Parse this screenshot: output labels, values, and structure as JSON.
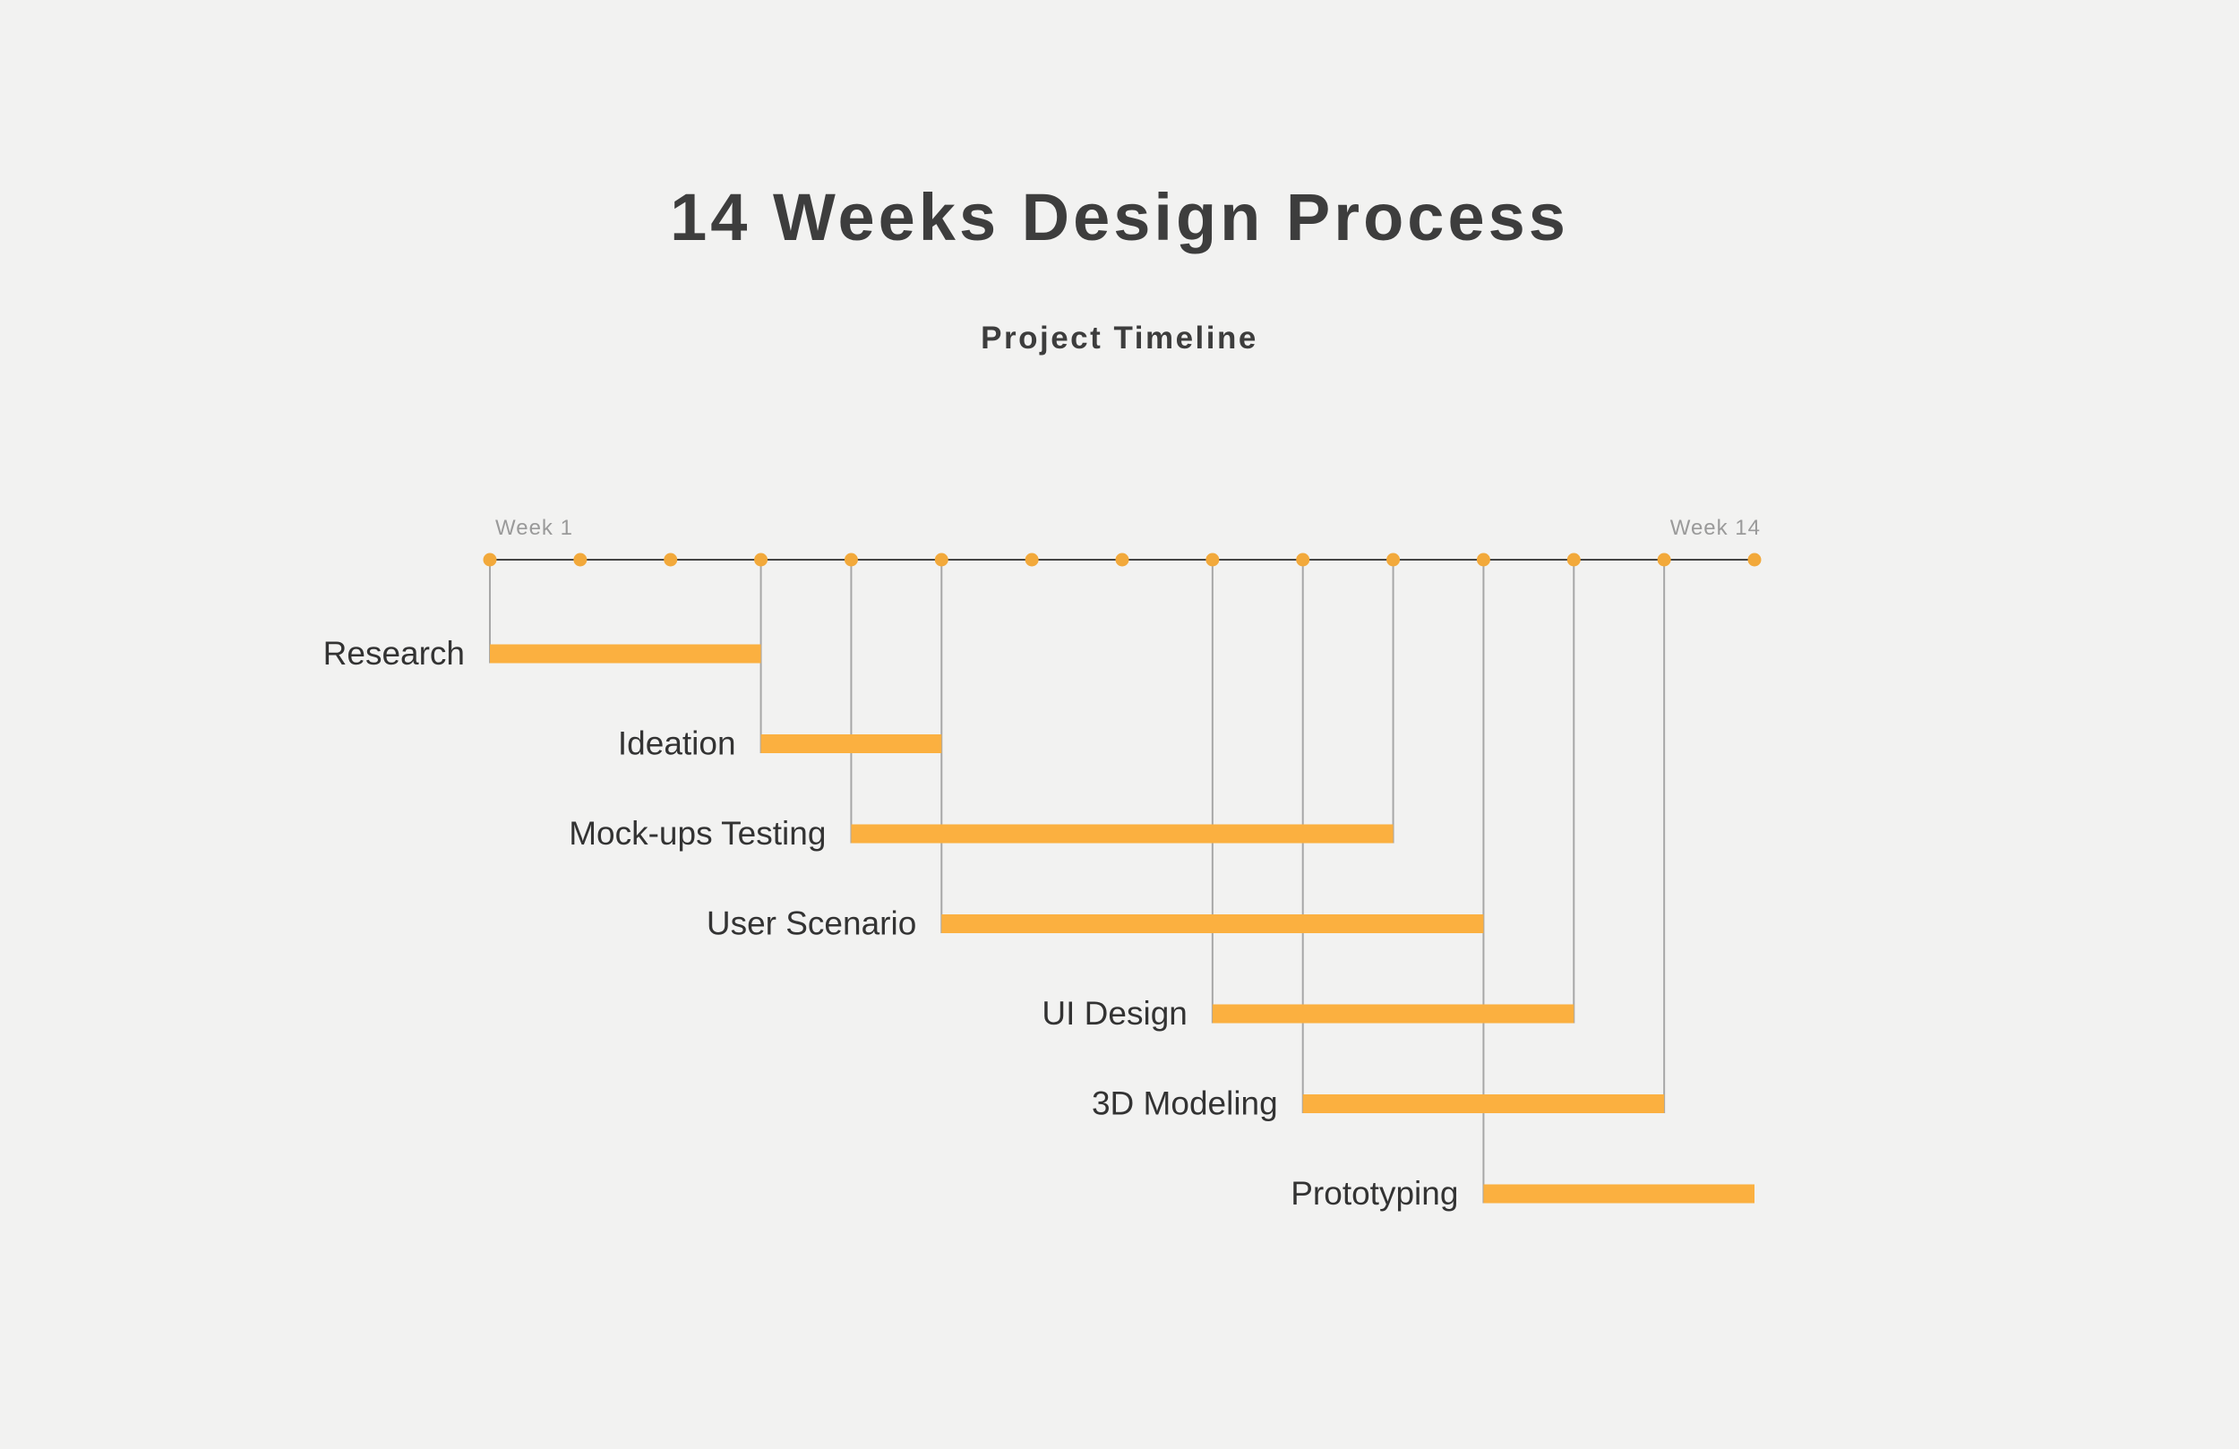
{
  "chart_data": {
    "type": "bar",
    "orientation": "horizontal",
    "title": "14 Weeks Design Process",
    "subtitle": "Project Timeline",
    "axis": {
      "start_label": "Week 1",
      "end_label": "Week 14",
      "range": [
        1,
        15
      ],
      "ticks": [
        1,
        2,
        3,
        4,
        5,
        6,
        7,
        8,
        9,
        10,
        11,
        12,
        13,
        14,
        15
      ]
    },
    "tasks": [
      {
        "name": "Research",
        "start": 1,
        "end": 4
      },
      {
        "name": "Ideation",
        "start": 4,
        "end": 6
      },
      {
        "name": "Mock-ups Testing",
        "start": 5,
        "end": 11
      },
      {
        "name": "User Scenario",
        "start": 6,
        "end": 12
      },
      {
        "name": "UI Design",
        "start": 9,
        "end": 13
      },
      {
        "name": "3D Modeling",
        "start": 10,
        "end": 14
      },
      {
        "name": "Prototyping",
        "start": 12,
        "end": 15
      }
    ],
    "colors": {
      "bar": "#fbb040",
      "dot": "#f2a93b",
      "axis": "#444444",
      "connector": "#a7a7a7",
      "title": "#3d3d3d",
      "label": "#333333",
      "week_label": "#9a9a9a"
    }
  }
}
